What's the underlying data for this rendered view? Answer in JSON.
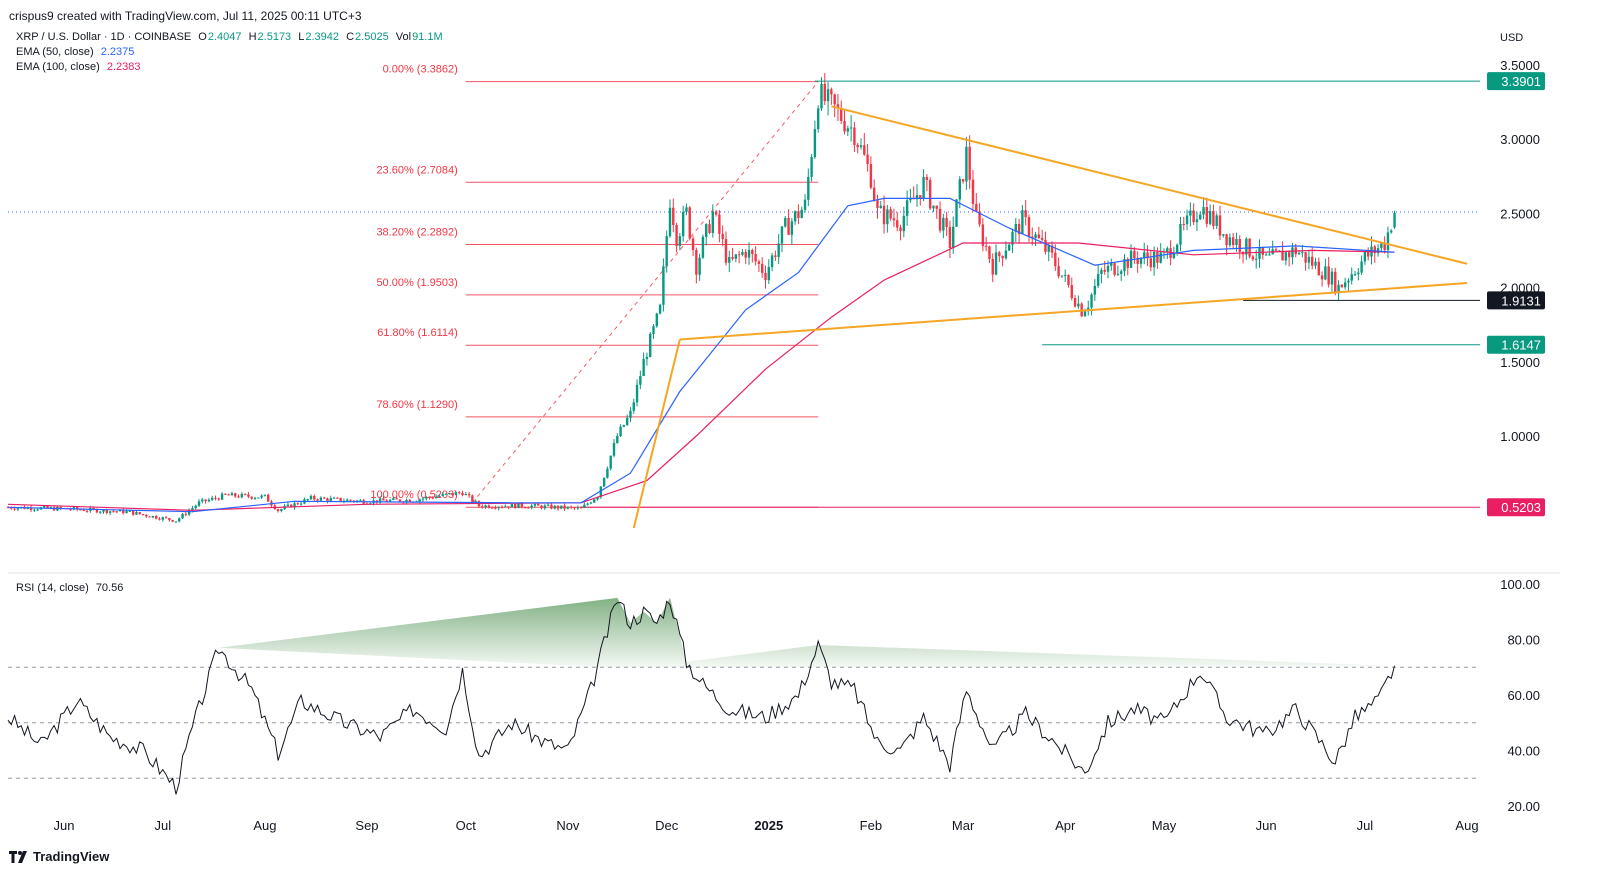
{
  "header": {
    "credit": "crispus9 created with TradingView.com, Jul 11, 2025 00:11 UTC+3"
  },
  "symbol": {
    "title": "XRP / U.S. Dollar · 1D · COINBASE",
    "o_label": "O",
    "o": "2.4047",
    "h_label": "H",
    "h": "2.5173",
    "l_label": "L",
    "l": "2.3942",
    "c_label": "C",
    "c": "2.5025",
    "vol_label": "Vol",
    "vol": "91.1M"
  },
  "indicators": {
    "ema50_label": "EMA (50, close)",
    "ema50_value": "2.2375",
    "ema100_label": "EMA (100, close)",
    "ema100_value": "2.2383",
    "rsi_label": "RSI (14, close)",
    "rsi_value": "70.56"
  },
  "currency": "USD",
  "footer": {
    "brand": "TradingView",
    "logo_icon": "tradingview-logo-icon"
  },
  "colors": {
    "up": "#089981",
    "down": "#f23645",
    "ema50": "#2962ff",
    "ema100": "#e91e63",
    "fib": "#f23645",
    "trend": "#f5a623",
    "rsi": "#131722",
    "rsi_fill": "#2e7d32",
    "badge_green": "#089981",
    "badge_black": "#131722",
    "badge_pink": "#e91e63"
  },
  "chart_data": [
    {
      "type": "candlestick",
      "title": "XRP / U.S. Dollar · 1D · COINBASE",
      "x_ticks": [
        "Jun",
        "Jul",
        "Aug",
        "Sep",
        "Oct",
        "Nov",
        "Dec",
        "2025",
        "Feb",
        "Mar",
        "Apr",
        "May",
        "Jun",
        "Jul",
        "Aug"
      ],
      "y_ticks": [
        "3.5000",
        "3.0000",
        "2.5000",
        "2.0000",
        "1.5000",
        "1.0000"
      ],
      "ylim": [
        0.3,
        3.57
      ],
      "close_series": [
        {
          "date": "2024-05-15",
          "close": 0.52
        },
        {
          "date": "2024-06-01",
          "close": 0.51
        },
        {
          "date": "2024-06-20",
          "close": 0.49
        },
        {
          "date": "2024-07-05",
          "close": 0.43
        },
        {
          "date": "2024-07-12",
          "close": 0.55
        },
        {
          "date": "2024-07-20",
          "close": 0.6
        },
        {
          "date": "2024-08-01",
          "close": 0.59
        },
        {
          "date": "2024-08-05",
          "close": 0.5
        },
        {
          "date": "2024-08-15",
          "close": 0.58
        },
        {
          "date": "2024-09-01",
          "close": 0.56
        },
        {
          "date": "2024-09-15",
          "close": 0.57
        },
        {
          "date": "2024-09-30",
          "close": 0.62
        },
        {
          "date": "2024-10-05",
          "close": 0.53
        },
        {
          "date": "2024-10-20",
          "close": 0.53
        },
        {
          "date": "2024-11-05",
          "close": 0.51
        },
        {
          "date": "2024-11-10",
          "close": 0.6
        },
        {
          "date": "2024-11-16",
          "close": 1.0
        },
        {
          "date": "2024-11-20",
          "close": 1.15
        },
        {
          "date": "2024-11-24",
          "close": 1.5
        },
        {
          "date": "2024-11-29",
          "close": 1.85
        },
        {
          "date": "2024-12-02",
          "close": 2.6
        },
        {
          "date": "2024-12-04",
          "close": 2.35
        },
        {
          "date": "2024-12-07",
          "close": 2.5
        },
        {
          "date": "2024-12-10",
          "close": 2.15
        },
        {
          "date": "2024-12-15",
          "close": 2.5
        },
        {
          "date": "2024-12-20",
          "close": 2.15
        },
        {
          "date": "2024-12-25",
          "close": 2.25
        },
        {
          "date": "2024-12-31",
          "close": 2.1
        },
        {
          "date": "2025-01-06",
          "close": 2.4
        },
        {
          "date": "2025-01-12",
          "close": 2.55
        },
        {
          "date": "2025-01-16",
          "close": 3.3
        },
        {
          "date": "2025-01-18",
          "close": 3.26
        },
        {
          "date": "2025-01-21",
          "close": 3.2
        },
        {
          "date": "2025-01-27",
          "close": 3.05
        },
        {
          "date": "2025-02-01",
          "close": 2.75
        },
        {
          "date": "2025-02-03",
          "close": 2.5
        },
        {
          "date": "2025-02-10",
          "close": 2.45
        },
        {
          "date": "2025-02-17",
          "close": 2.7
        },
        {
          "date": "2025-02-25",
          "close": 2.3
        },
        {
          "date": "2025-03-02",
          "close": 2.9
        },
        {
          "date": "2025-03-05",
          "close": 2.45
        },
        {
          "date": "2025-03-10",
          "close": 2.15
        },
        {
          "date": "2025-03-19",
          "close": 2.45
        },
        {
          "date": "2025-03-28",
          "close": 2.2
        },
        {
          "date": "2025-04-06",
          "close": 1.85
        },
        {
          "date": "2025-04-08",
          "close": 1.9
        },
        {
          "date": "2025-04-12",
          "close": 2.1
        },
        {
          "date": "2025-04-22",
          "close": 2.2
        },
        {
          "date": "2025-05-01",
          "close": 2.2
        },
        {
          "date": "2025-05-12",
          "close": 2.55
        },
        {
          "date": "2025-05-20",
          "close": 2.35
        },
        {
          "date": "2025-06-01",
          "close": 2.18
        },
        {
          "date": "2025-06-10",
          "close": 2.25
        },
        {
          "date": "2025-06-20",
          "close": 2.08
        },
        {
          "date": "2025-06-23",
          "close": 2.0
        },
        {
          "date": "2025-07-01",
          "close": 2.2
        },
        {
          "date": "2025-07-07",
          "close": 2.3
        },
        {
          "date": "2025-07-10",
          "close": 2.5025
        }
      ],
      "ema50": [
        {
          "date": "2024-05-15",
          "v": 0.52
        },
        {
          "date": "2024-07-10",
          "v": 0.49
        },
        {
          "date": "2024-08-10",
          "v": 0.56
        },
        {
          "date": "2024-10-15",
          "v": 0.55
        },
        {
          "date": "2024-11-05",
          "v": 0.55
        },
        {
          "date": "2024-11-20",
          "v": 0.75
        },
        {
          "date": "2024-12-05",
          "v": 1.3
        },
        {
          "date": "2024-12-25",
          "v": 1.85
        },
        {
          "date": "2025-01-10",
          "v": 2.1
        },
        {
          "date": "2025-01-25",
          "v": 2.55
        },
        {
          "date": "2025-02-05",
          "v": 2.6
        },
        {
          "date": "2025-02-25",
          "v": 2.6
        },
        {
          "date": "2025-03-15",
          "v": 2.4
        },
        {
          "date": "2025-04-10",
          "v": 2.15
        },
        {
          "date": "2025-05-10",
          "v": 2.25
        },
        {
          "date": "2025-06-10",
          "v": 2.28
        },
        {
          "date": "2025-07-10",
          "v": 2.2375
        }
      ],
      "ema100": [
        {
          "date": "2024-05-15",
          "v": 0.54
        },
        {
          "date": "2024-07-10",
          "v": 0.5
        },
        {
          "date": "2024-09-01",
          "v": 0.54
        },
        {
          "date": "2024-11-05",
          "v": 0.55
        },
        {
          "date": "2024-11-25",
          "v": 0.7
        },
        {
          "date": "2024-12-10",
          "v": 1.0
        },
        {
          "date": "2024-12-31",
          "v": 1.45
        },
        {
          "date": "2025-01-20",
          "v": 1.8
        },
        {
          "date": "2025-02-05",
          "v": 2.05
        },
        {
          "date": "2025-03-01",
          "v": 2.3
        },
        {
          "date": "2025-04-05",
          "v": 2.3
        },
        {
          "date": "2025-05-10",
          "v": 2.22
        },
        {
          "date": "2025-06-15",
          "v": 2.25
        },
        {
          "date": "2025-07-10",
          "v": 2.2383
        }
      ],
      "fibonacci": [
        {
          "label": "0.00% (3.3862)",
          "value": 3.3862
        },
        {
          "label": "23.60% (2.7084)",
          "value": 2.7084
        },
        {
          "label": "38.20% (2.2892)",
          "value": 2.2892
        },
        {
          "label": "50.00% (1.9503)",
          "value": 1.9503
        },
        {
          "label": "61.80% (1.6114)",
          "value": 1.6114
        },
        {
          "label": "78.60% (1.1290)",
          "value": 1.129
        },
        {
          "label": "100.00% (0.5203)",
          "value": 0.5203
        }
      ],
      "trendlines": [
        {
          "name": "triangle-upper",
          "from": {
            "date": "2025-01-20",
            "v": 3.22
          },
          "to": {
            "date": "2025-08-01",
            "v": 2.16
          }
        },
        {
          "name": "triangle-lower",
          "from": {
            "date": "2024-12-05",
            "v": 1.65
          },
          "to": {
            "date": "2025-08-01",
            "v": 2.03
          }
        },
        {
          "name": "rally-support",
          "from": {
            "date": "2024-11-21",
            "v": 0.38
          },
          "to": {
            "date": "2024-12-05",
            "v": 1.65
          }
        }
      ],
      "price_lines": [
        {
          "label": "3.3901",
          "value": 3.3901,
          "from": "2025-01-15",
          "color": "#089981"
        },
        {
          "label": "1.9131",
          "value": 1.9131,
          "from": "2025-05-25",
          "color": "#131722"
        },
        {
          "label": "1.6147",
          "value": 1.6147,
          "from": "2025-03-25",
          "color": "#089981"
        },
        {
          "label": "0.5203",
          "value": 0.5203,
          "from": "2024-11-05",
          "color": "#e91e63"
        }
      ],
      "last_price": 2.5025
    },
    {
      "type": "line",
      "title": "RSI (14, close)",
      "y_ticks": [
        "100.00",
        "80.00",
        "60.00",
        "40.00",
        "20.00"
      ],
      "ylim": [
        20,
        100
      ],
      "levels": [
        70,
        50,
        30
      ],
      "values": [
        {
          "date": "2024-05-15",
          "v": 52
        },
        {
          "date": "2024-05-25",
          "v": 42
        },
        {
          "date": "2024-06-05",
          "v": 58
        },
        {
          "date": "2024-06-15",
          "v": 45
        },
        {
          "date": "2024-06-25",
          "v": 40
        },
        {
          "date": "2024-07-05",
          "v": 27
        },
        {
          "date": "2024-07-10",
          "v": 48
        },
        {
          "date": "2024-07-18",
          "v": 77
        },
        {
          "date": "2024-07-28",
          "v": 62
        },
        {
          "date": "2024-08-05",
          "v": 39
        },
        {
          "date": "2024-08-12",
          "v": 58
        },
        {
          "date": "2024-08-25",
          "v": 50
        },
        {
          "date": "2024-09-05",
          "v": 45
        },
        {
          "date": "2024-09-15",
          "v": 55
        },
        {
          "date": "2024-09-25",
          "v": 48
        },
        {
          "date": "2024-09-30",
          "v": 69
        },
        {
          "date": "2024-10-05",
          "v": 38
        },
        {
          "date": "2024-10-15",
          "v": 50
        },
        {
          "date": "2024-10-25",
          "v": 43
        },
        {
          "date": "2024-11-01",
          "v": 40
        },
        {
          "date": "2024-11-08",
          "v": 62
        },
        {
          "date": "2024-11-16",
          "v": 95
        },
        {
          "date": "2024-11-20",
          "v": 86
        },
        {
          "date": "2024-11-24",
          "v": 90
        },
        {
          "date": "2024-11-28",
          "v": 86
        },
        {
          "date": "2024-12-02",
          "v": 95
        },
        {
          "date": "2024-12-07",
          "v": 72
        },
        {
          "date": "2024-12-12",
          "v": 64
        },
        {
          "date": "2024-12-20",
          "v": 55
        },
        {
          "date": "2024-12-31",
          "v": 52
        },
        {
          "date": "2025-01-10",
          "v": 60
        },
        {
          "date": "2025-01-16",
          "v": 78
        },
        {
          "date": "2025-01-20",
          "v": 65
        },
        {
          "date": "2025-01-27",
          "v": 62
        },
        {
          "date": "2025-02-03",
          "v": 43
        },
        {
          "date": "2025-02-10",
          "v": 40
        },
        {
          "date": "2025-02-17",
          "v": 52
        },
        {
          "date": "2025-02-25",
          "v": 35
        },
        {
          "date": "2025-03-02",
          "v": 62
        },
        {
          "date": "2025-03-10",
          "v": 40
        },
        {
          "date": "2025-03-20",
          "v": 53
        },
        {
          "date": "2025-03-28",
          "v": 44
        },
        {
          "date": "2025-04-07",
          "v": 32
        },
        {
          "date": "2025-04-14",
          "v": 50
        },
        {
          "date": "2025-04-22",
          "v": 55
        },
        {
          "date": "2025-05-01",
          "v": 50
        },
        {
          "date": "2025-05-12",
          "v": 69
        },
        {
          "date": "2025-05-20",
          "v": 52
        },
        {
          "date": "2025-06-01",
          "v": 46
        },
        {
          "date": "2025-06-10",
          "v": 55
        },
        {
          "date": "2025-06-22",
          "v": 36
        },
        {
          "date": "2025-06-28",
          "v": 52
        },
        {
          "date": "2025-07-05",
          "v": 58
        },
        {
          "date": "2025-07-10",
          "v": 70.56
        }
      ]
    }
  ]
}
